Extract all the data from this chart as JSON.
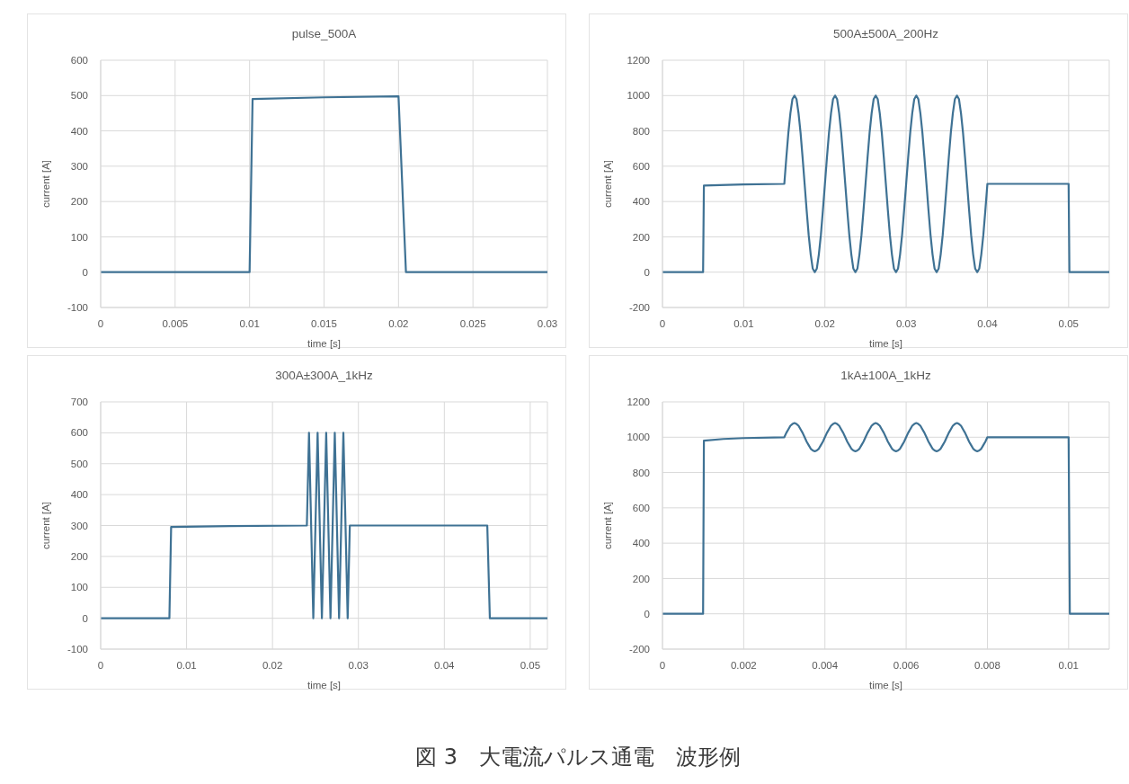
{
  "chart_data": [
    {
      "type": "line",
      "title": "pulse_500A",
      "xlabel": "time [s]",
      "ylabel": "current [A]",
      "color": "#3f7294",
      "grid": true,
      "xlim": [
        0,
        0.03
      ],
      "xticks": [
        0,
        0.005,
        0.01,
        0.015,
        0.02,
        0.025,
        0.03
      ],
      "ylim": [
        -100,
        600
      ],
      "yticks": [
        -100,
        0,
        100,
        200,
        300,
        400,
        500,
        600
      ],
      "x": [
        0,
        0.01,
        0.0102,
        0.015,
        0.02,
        0.0205,
        0.03
      ],
      "values": [
        0,
        0,
        490,
        495,
        498,
        0,
        0
      ]
    },
    {
      "type": "line",
      "title": "500A±500A_200Hz",
      "xlabel": "time [s]",
      "ylabel": "current [A]",
      "color": "#3f7294",
      "grid": true,
      "xlim": [
        0,
        0.055
      ],
      "xticks": [
        0,
        0.01,
        0.02,
        0.03,
        0.04,
        0.05
      ],
      "ylim": [
        -200,
        1200
      ],
      "yticks": [
        -200,
        0,
        200,
        400,
        600,
        800,
        1000,
        1200
      ],
      "x": [
        0,
        0.005,
        0.0051,
        0.01,
        0.015,
        0.01525,
        0.0155,
        0.01575,
        0.016,
        0.01625,
        0.0165,
        0.01675,
        0.017,
        0.01725,
        0.0175,
        0.01775,
        0.018,
        0.01825,
        0.0185,
        0.01875,
        0.019,
        0.01925,
        0.0195,
        0.01975,
        0.02,
        0.02025,
        0.0205,
        0.02075,
        0.021,
        0.02125,
        0.0215,
        0.02175,
        0.022,
        0.02225,
        0.0225,
        0.02275,
        0.023,
        0.02325,
        0.0235,
        0.02375,
        0.024,
        0.02425,
        0.0245,
        0.02475,
        0.025,
        0.02525,
        0.0255,
        0.02575,
        0.026,
        0.02625,
        0.0265,
        0.02675,
        0.027,
        0.02725,
        0.0275,
        0.02775,
        0.028,
        0.02825,
        0.0285,
        0.02875,
        0.029,
        0.02925,
        0.0295,
        0.02975,
        0.03,
        0.03025,
        0.0305,
        0.03075,
        0.031,
        0.03125,
        0.0315,
        0.03175,
        0.032,
        0.03225,
        0.0325,
        0.03275,
        0.033,
        0.03325,
        0.0335,
        0.03375,
        0.034,
        0.03425,
        0.0345,
        0.03475,
        0.035,
        0.03525,
        0.0355,
        0.03575,
        0.036,
        0.03625,
        0.0365,
        0.03675,
        0.037,
        0.03725,
        0.0375,
        0.03775,
        0.038,
        0.03825,
        0.0385,
        0.03875,
        0.039,
        0.03925,
        0.0395,
        0.03975,
        0.04,
        0.05,
        0.0501,
        0.055
      ],
      "values": [
        0,
        0,
        490,
        497,
        500,
        650,
        790,
        900,
        980,
        1000,
        980,
        900,
        790,
        650,
        500,
        350,
        210,
        100,
        20,
        0,
        20,
        100,
        210,
        350,
        500,
        650,
        790,
        900,
        980,
        1000,
        980,
        900,
        790,
        650,
        500,
        350,
        210,
        100,
        20,
        0,
        20,
        100,
        210,
        350,
        500,
        650,
        790,
        900,
        980,
        1000,
        980,
        900,
        790,
        650,
        500,
        350,
        210,
        100,
        20,
        0,
        20,
        100,
        210,
        350,
        500,
        650,
        790,
        900,
        980,
        1000,
        980,
        900,
        790,
        650,
        500,
        350,
        210,
        100,
        20,
        0,
        20,
        100,
        210,
        350,
        500,
        650,
        790,
        900,
        980,
        1000,
        980,
        900,
        790,
        650,
        500,
        350,
        210,
        100,
        20,
        0,
        20,
        100,
        210,
        350,
        500,
        500,
        0,
        0
      ]
    },
    {
      "type": "line",
      "title": "300A±300A_1kHz",
      "xlabel": "time [s]",
      "ylabel": "current [A]",
      "color": "#3f7294",
      "grid": true,
      "xlim": [
        0,
        0.052
      ],
      "xticks": [
        0,
        0.01,
        0.02,
        0.03,
        0.04,
        0.05
      ],
      "ylim": [
        -100,
        700
      ],
      "yticks": [
        -100,
        0,
        100,
        200,
        300,
        400,
        500,
        600,
        700
      ],
      "x": [
        0,
        0.008,
        0.0082,
        0.015,
        0.024,
        0.02425,
        0.02475,
        0.02525,
        0.02575,
        0.02625,
        0.02675,
        0.02725,
        0.02775,
        0.02825,
        0.02875,
        0.029,
        0.045,
        0.0453,
        0.052
      ],
      "values": [
        0,
        0,
        295,
        298,
        300,
        600,
        0,
        600,
        0,
        600,
        0,
        600,
        0,
        600,
        0,
        300,
        300,
        0,
        0
      ]
    },
    {
      "type": "line",
      "title": "1kA±100A_1kHz",
      "xlabel": "time [s]",
      "ylabel": "current [A]",
      "color": "#3f7294",
      "grid": true,
      "xlim": [
        0,
        0.011
      ],
      "xticks": [
        0,
        0.002,
        0.004,
        0.006,
        0.008,
        0.01
      ],
      "ylim": [
        -200,
        1200
      ],
      "yticks": [
        -200,
        0,
        200,
        400,
        600,
        800,
        1000,
        1200
      ],
      "x": [
        0,
        0.001,
        0.00102,
        0.0015,
        0.002,
        0.003,
        0.00305,
        0.0031,
        0.00315,
        0.0032,
        0.00325,
        0.0033,
        0.00335,
        0.0034,
        0.00345,
        0.0035,
        0.00355,
        0.0036,
        0.00365,
        0.0037,
        0.00375,
        0.0038,
        0.00385,
        0.0039,
        0.00395,
        0.004,
        0.00405,
        0.0041,
        0.00415,
        0.0042,
        0.00425,
        0.0043,
        0.00435,
        0.0044,
        0.00445,
        0.0045,
        0.00455,
        0.0046,
        0.00465,
        0.0047,
        0.00475,
        0.0048,
        0.00485,
        0.0049,
        0.00495,
        0.005,
        0.00505,
        0.0051,
        0.00515,
        0.0052,
        0.00525,
        0.0053,
        0.00535,
        0.0054,
        0.00545,
        0.0055,
        0.00555,
        0.0056,
        0.00565,
        0.0057,
        0.00575,
        0.0058,
        0.00585,
        0.0059,
        0.00595,
        0.006,
        0.00605,
        0.0061,
        0.00615,
        0.0062,
        0.00625,
        0.0063,
        0.00635,
        0.0064,
        0.00645,
        0.0065,
        0.00655,
        0.0066,
        0.00665,
        0.0067,
        0.00675,
        0.0068,
        0.00685,
        0.0069,
        0.00695,
        0.007,
        0.00705,
        0.0071,
        0.00715,
        0.0072,
        0.00725,
        0.0073,
        0.00735,
        0.0074,
        0.00745,
        0.0075,
        0.00755,
        0.0076,
        0.00765,
        0.0077,
        0.00775,
        0.0078,
        0.00785,
        0.0079,
        0.00795,
        0.008,
        0.01,
        0.01003,
        0.011
      ],
      "values": [
        0,
        0,
        980,
        990,
        995,
        1000,
        1025,
        1045,
        1065,
        1075,
        1080,
        1075,
        1065,
        1045,
        1025,
        1000,
        975,
        955,
        935,
        925,
        920,
        925,
        935,
        955,
        975,
        1000,
        1025,
        1045,
        1065,
        1075,
        1080,
        1075,
        1065,
        1045,
        1025,
        1000,
        975,
        955,
        935,
        925,
        920,
        925,
        935,
        955,
        975,
        1000,
        1025,
        1045,
        1065,
        1075,
        1080,
        1075,
        1065,
        1045,
        1025,
        1000,
        975,
        955,
        935,
        925,
        920,
        925,
        935,
        955,
        975,
        1000,
        1025,
        1045,
        1065,
        1075,
        1080,
        1075,
        1065,
        1045,
        1025,
        1000,
        975,
        955,
        935,
        925,
        920,
        925,
        935,
        955,
        975,
        1000,
        1025,
        1045,
        1065,
        1075,
        1080,
        1075,
        1065,
        1045,
        1025,
        1000,
        975,
        955,
        935,
        925,
        920,
        925,
        935,
        955,
        975,
        1000,
        1000,
        0,
        0
      ],
      "annotations": [
        "図 3　大電流パルス通電　波形例"
      ]
    }
  ]
}
